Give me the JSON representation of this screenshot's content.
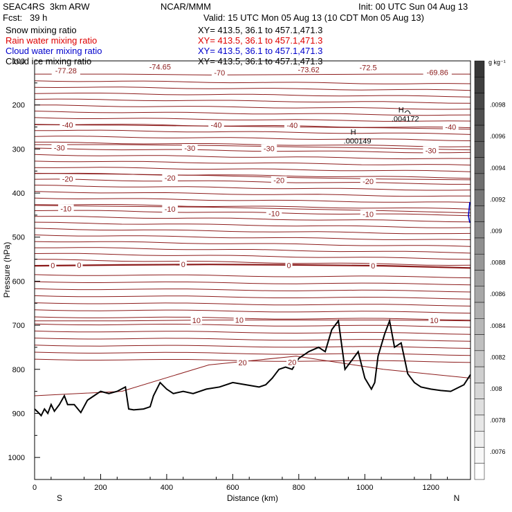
{
  "header": {
    "project": "SEAC4RS  3km ARW",
    "center": "NCAR/MMM",
    "init": "Init: 00 UTC Sun 04 Aug 13",
    "fcst": "Fcst:   39 h",
    "valid": "Valid: 15 UTC Mon 05 Aug 13 (10 CDT Mon 05 Aug 13)",
    "fields": [
      {
        "name": "Snow mixing ratio",
        "xy": "XY= 413.5, 36.1 to 457.1,471.3",
        "color": "#000000"
      },
      {
        "name": "Rain water mixing ratio",
        "xy": "XY= 413.5, 36.1 to 457.1,471.3",
        "color": "#dd0000"
      },
      {
        "name": "Cloud water mixing ratio",
        "xy": "XY= 413.5, 36.1 to 457.1,471.3",
        "color": "#0000cc"
      },
      {
        "name": "Cloud ice mixing ratio",
        "xy": "XY= 413.5, 36.1 to 457.1,471.3",
        "color": "#000000"
      }
    ]
  },
  "colors": {
    "contour": "#8b1a1a",
    "terrain": "#000000"
  },
  "chart_data": {
    "type": "contour",
    "xlabel": "Distance (km)",
    "ylabel": "Pressure (hPa)",
    "xlim": [
      0,
      1320
    ],
    "ylim": [
      1050,
      100
    ],
    "x_ticks": [
      "0",
      "200",
      "400",
      "600",
      "800",
      "1000",
      "1200"
    ],
    "x_tick_values": [
      0,
      200,
      400,
      600,
      800,
      1000,
      1200
    ],
    "y_ticks": [
      "100",
      "200",
      "300",
      "400",
      "500",
      "600",
      "700",
      "800",
      "900",
      "1000"
    ],
    "y_tick_values": [
      100,
      200,
      300,
      400,
      500,
      600,
      700,
      800,
      900,
      1000
    ],
    "direction_labels": {
      "left": "S",
      "right": "N"
    },
    "colorbar": {
      "unit": "g kg⁻¹",
      "labels": [
        ".0098",
        ".0096",
        ".0094",
        ".0092",
        ".009",
        ".0088",
        ".0086",
        ".0084",
        ".0082",
        ".008",
        ".0078",
        ".0076"
      ]
    },
    "temperature_contours": [
      {
        "label": "-70",
        "p": [
          130,
          130,
          132,
          131,
          130,
          130
        ]
      },
      {
        "label": "-40",
        "p": [
          245,
          246,
          248,
          250,
          252,
          255
        ]
      },
      {
        "label": "-30",
        "p": [
          290,
          290,
          292,
          295,
          298,
          302
        ]
      },
      {
        "label": "-20",
        "p": [
          355,
          357,
          360,
          365,
          368,
          370
        ]
      },
      {
        "label": "-10",
        "p": [
          428,
          430,
          432,
          436,
          440,
          445
        ]
      },
      {
        "label": "0",
        "p": [
          565,
          563,
          562,
          563,
          565,
          570
        ]
      },
      {
        "label": "10",
        "p": [
          690,
          690,
          688,
          688,
          688,
          690
        ]
      },
      {
        "label": "20",
        "p": [
          860,
          850,
          790,
          770,
          800,
          820
        ]
      }
    ],
    "contour_labels": [
      {
        "text": "-77.28",
        "x": 95,
        "p": 122
      },
      {
        "text": "-74.65",
        "x": 380,
        "p": 113
      },
      {
        "text": "-70",
        "x": 560,
        "p": 127
      },
      {
        "text": "-73.62",
        "x": 830,
        "p": 120
      },
      {
        "text": "-72.5",
        "x": 1010,
        "p": 115
      },
      {
        "text": "-69.86",
        "x": 1220,
        "p": 126
      },
      {
        "text": "-40",
        "x": 100,
        "p": 245
      },
      {
        "text": "-40",
        "x": 550,
        "p": 245
      },
      {
        "text": "-40",
        "x": 780,
        "p": 246
      },
      {
        "text": "-40",
        "x": 1260,
        "p": 250
      },
      {
        "text": "-30",
        "x": 75,
        "p": 297
      },
      {
        "text": "-30",
        "x": 470,
        "p": 298
      },
      {
        "text": "-30",
        "x": 710,
        "p": 299
      },
      {
        "text": "-30",
        "x": 1200,
        "p": 303
      },
      {
        "text": "-20",
        "x": 100,
        "p": 368
      },
      {
        "text": "-20",
        "x": 410,
        "p": 365
      },
      {
        "text": "-20",
        "x": 740,
        "p": 371
      },
      {
        "text": "-20",
        "x": 1010,
        "p": 373
      },
      {
        "text": "-10",
        "x": 95,
        "p": 435
      },
      {
        "text": "-10",
        "x": 410,
        "p": 436
      },
      {
        "text": "-10",
        "x": 725,
        "p": 446
      },
      {
        "text": "-10",
        "x": 1010,
        "p": 448
      },
      {
        "text": "0",
        "x": 55,
        "p": 564
      },
      {
        "text": "0",
        "x": 135,
        "p": 563
      },
      {
        "text": "0",
        "x": 450,
        "p": 562
      },
      {
        "text": "0",
        "x": 770,
        "p": 564
      },
      {
        "text": "0",
        "x": 1025,
        "p": 565
      },
      {
        "text": "10",
        "x": 490,
        "p": 689
      },
      {
        "text": "10",
        "x": 620,
        "p": 688
      },
      {
        "text": "10",
        "x": 1210,
        "p": 689
      },
      {
        "text": "20",
        "x": 630,
        "p": 785
      },
      {
        "text": "20",
        "x": 780,
        "p": 784
      }
    ],
    "extrema": [
      {
        "symbol": "H",
        "value": ".000149",
        "x": 965,
        "p": 270
      },
      {
        "symbol": "H",
        "value": ".004172",
        "x": 1110,
        "p": 220
      }
    ],
    "terrain": [
      [
        0,
        890
      ],
      [
        10,
        897
      ],
      [
        20,
        905
      ],
      [
        30,
        890
      ],
      [
        40,
        900
      ],
      [
        50,
        880
      ],
      [
        60,
        895
      ],
      [
        75,
        880
      ],
      [
        90,
        860
      ],
      [
        100,
        880
      ],
      [
        120,
        880
      ],
      [
        140,
        898
      ],
      [
        160,
        870
      ],
      [
        180,
        860
      ],
      [
        200,
        850
      ],
      [
        225,
        855
      ],
      [
        250,
        850
      ],
      [
        275,
        840
      ],
      [
        285,
        890
      ],
      [
        300,
        892
      ],
      [
        330,
        890
      ],
      [
        350,
        885
      ],
      [
        360,
        860
      ],
      [
        380,
        830
      ],
      [
        400,
        845
      ],
      [
        420,
        855
      ],
      [
        450,
        850
      ],
      [
        480,
        855
      ],
      [
        520,
        845
      ],
      [
        560,
        840
      ],
      [
        600,
        830
      ],
      [
        640,
        835
      ],
      [
        680,
        840
      ],
      [
        700,
        835
      ],
      [
        720,
        820
      ],
      [
        740,
        800
      ],
      [
        760,
        795
      ],
      [
        780,
        800
      ],
      [
        800,
        775
      ],
      [
        830,
        760
      ],
      [
        860,
        750
      ],
      [
        880,
        760
      ],
      [
        900,
        710
      ],
      [
        920,
        690
      ],
      [
        940,
        800
      ],
      [
        960,
        780
      ],
      [
        980,
        760
      ],
      [
        1000,
        820
      ],
      [
        1020,
        845
      ],
      [
        1030,
        830
      ],
      [
        1040,
        770
      ],
      [
        1060,
        720
      ],
      [
        1075,
        690
      ],
      [
        1090,
        750
      ],
      [
        1110,
        740
      ],
      [
        1130,
        810
      ],
      [
        1150,
        830
      ],
      [
        1170,
        840
      ],
      [
        1200,
        845
      ],
      [
        1230,
        848
      ],
      [
        1260,
        850
      ],
      [
        1300,
        835
      ],
      [
        1320,
        812
      ]
    ]
  }
}
